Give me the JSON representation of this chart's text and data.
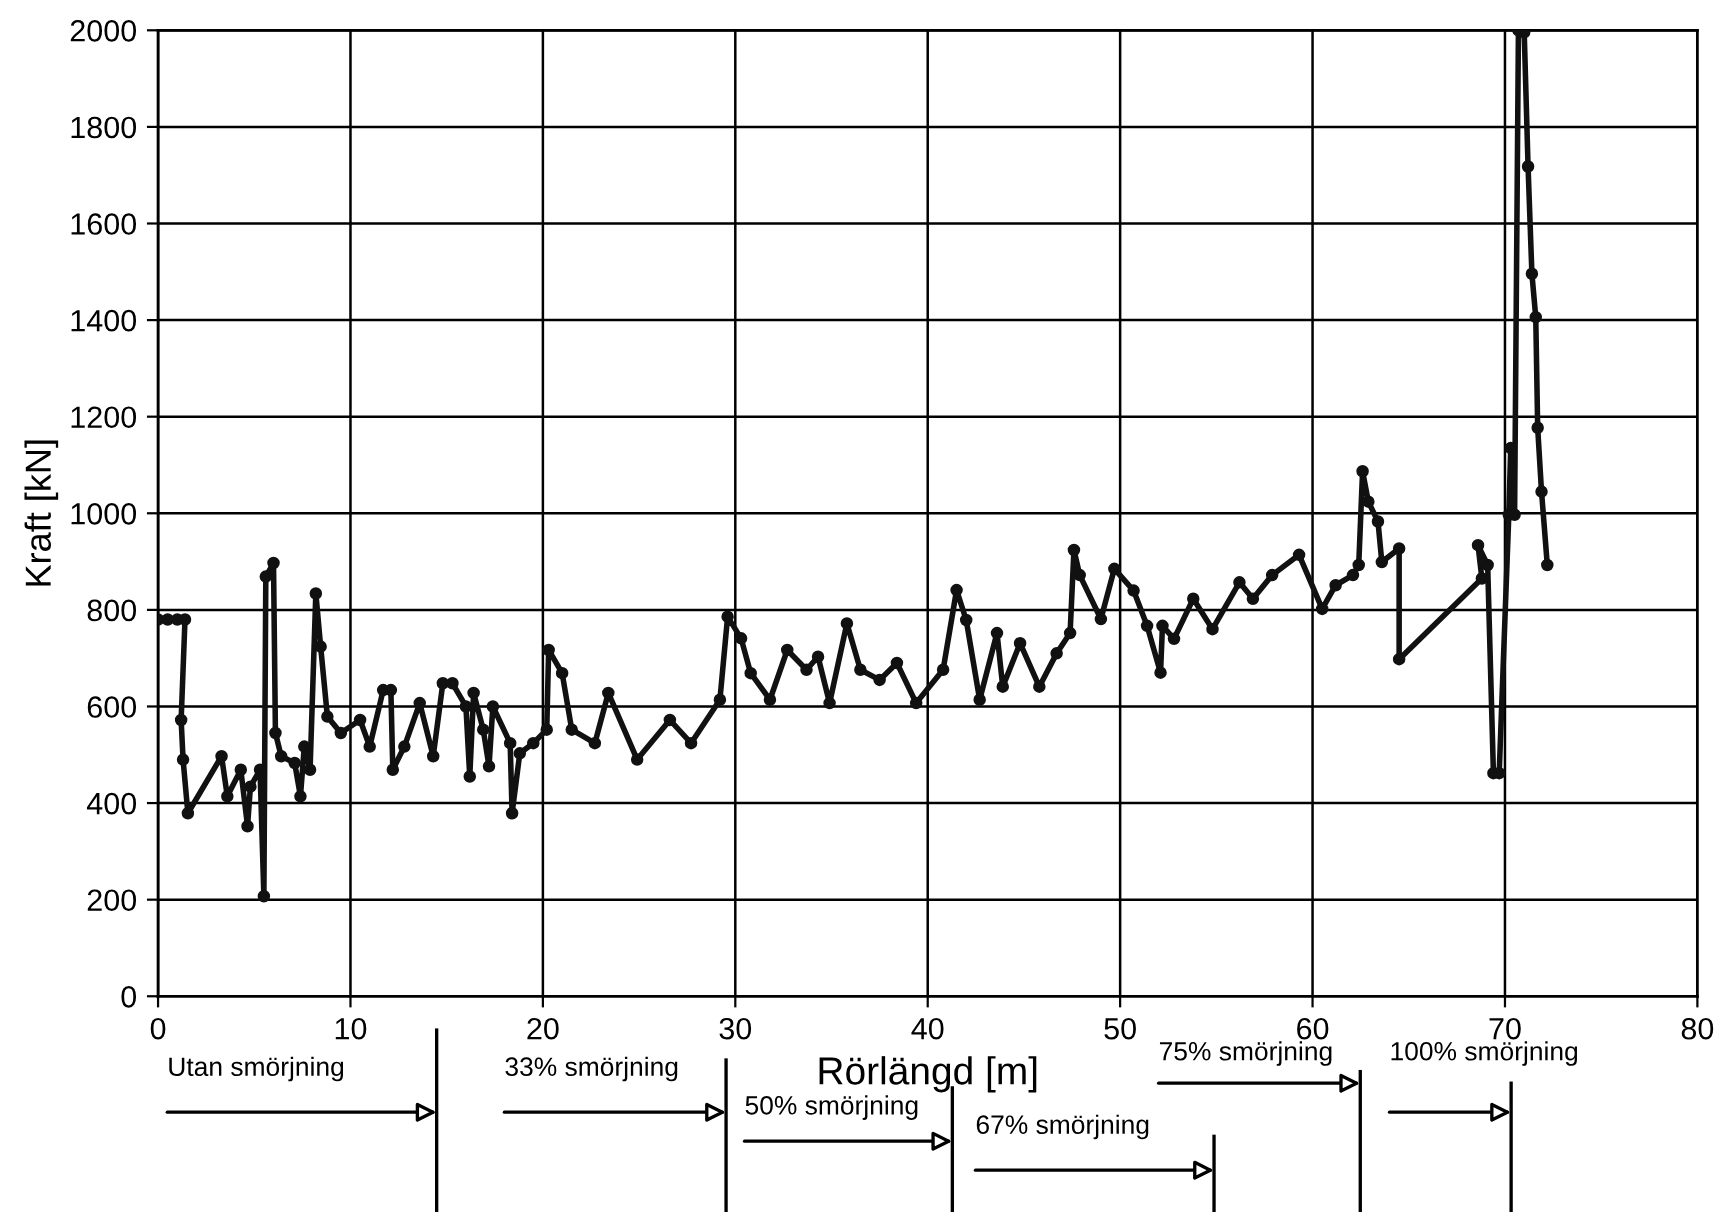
{
  "chart_data": {
    "type": "line",
    "xlabel": "Rörlängd [m]",
    "ylabel": "Kraft [kN]",
    "xlim": [
      0,
      80
    ],
    "xticks": [
      0,
      10,
      20,
      30,
      40,
      50,
      60,
      70,
      80
    ],
    "ylim": [
      0,
      2000
    ],
    "yticks": [
      0,
      200,
      400,
      600,
      800,
      1000,
      1200,
      1400,
      1600,
      1800,
      2000
    ],
    "grid": true,
    "marker": "circle",
    "line_style": "solid",
    "series": [
      {
        "color": "#111111",
        "x": [
          0,
          0.5,
          1.0,
          1.4,
          1.2,
          1.3,
          1.55,
          3.3,
          3.6,
          4.3,
          4.65,
          4.8,
          5.3,
          5.5,
          5.6,
          6.0,
          6.1,
          6.4,
          7.1,
          7.4,
          7.6,
          7.9,
          8.2,
          8.45,
          8.8,
          9.5,
          10.5,
          11.0,
          11.7,
          12.1,
          12.2,
          12.8,
          13.6,
          14.3,
          14.8,
          15.3,
          16.0,
          16.2,
          16.4,
          16.9,
          17.2,
          17.4,
          18.3,
          18.4,
          18.8,
          19.5,
          20.2,
          20.3,
          21.0,
          21.5,
          22.7,
          23.4,
          24.9,
          26.6,
          27.7,
          29.2,
          29.6,
          30.3,
          30.8,
          31.8,
          32.7,
          33.7,
          34.3,
          34.9,
          35.8,
          36.5,
          37.5,
          38.4,
          39.4,
          40.8,
          41.5,
          42.0,
          42.7,
          43.6,
          43.9,
          44.8,
          45.8,
          46.7,
          47.4,
          47.6,
          47.9,
          49.0,
          49.7,
          50.7,
          51.4,
          52.1,
          52.2,
          52.8,
          53.8,
          54.8,
          56.2,
          56.9,
          57.9,
          59.3,
          60.5,
          61.2,
          62.1,
          62.4,
          62.6,
          62.9,
          63.4,
          63.6,
          64.5,
          64.5,
          68.8,
          68.6,
          69.1,
          69.4,
          69.7,
          70.2,
          70.3,
          70.5,
          70.7,
          71.0,
          71.2,
          71.4,
          71.6,
          71.7,
          71.9,
          72.2
        ],
        "values": [
          780,
          780,
          780,
          780,
          572,
          490,
          379,
          497,
          414,
          469,
          352,
          434,
          469,
          207,
          869,
          897,
          545,
          497,
          483,
          414,
          517,
          469,
          834,
          724,
          579,
          545,
          572,
          517,
          634,
          634,
          469,
          517,
          607,
          497,
          648,
          648,
          600,
          455,
          628,
          552,
          476,
          600,
          524,
          379,
          503,
          524,
          552,
          717,
          669,
          552,
          524,
          628,
          490,
          572,
          524,
          614,
          786,
          741,
          669,
          614,
          717,
          676,
          703,
          607,
          772,
          676,
          655,
          690,
          607,
          676,
          841,
          779,
          614,
          752,
          641,
          731,
          641,
          710,
          752,
          924,
          872,
          781,
          885,
          840,
          767,
          670,
          767,
          740,
          823,
          760,
          857,
          823,
          872,
          914,
          802,
          851,
          872,
          893,
          1087,
          1024,
          983,
          899,
          927,
          698,
          865,
          934,
          893,
          462,
          462,
          997,
          1135,
          997,
          2000,
          1996,
          1718,
          1496,
          1406,
          1177,
          1045,
          893
        ]
      }
    ],
    "annotations": [
      "Utan smörjning",
      "33% smörjning",
      "50% smörjning",
      "67% smörjning",
      "75% smörjning",
      "100% smörjning"
    ]
  }
}
